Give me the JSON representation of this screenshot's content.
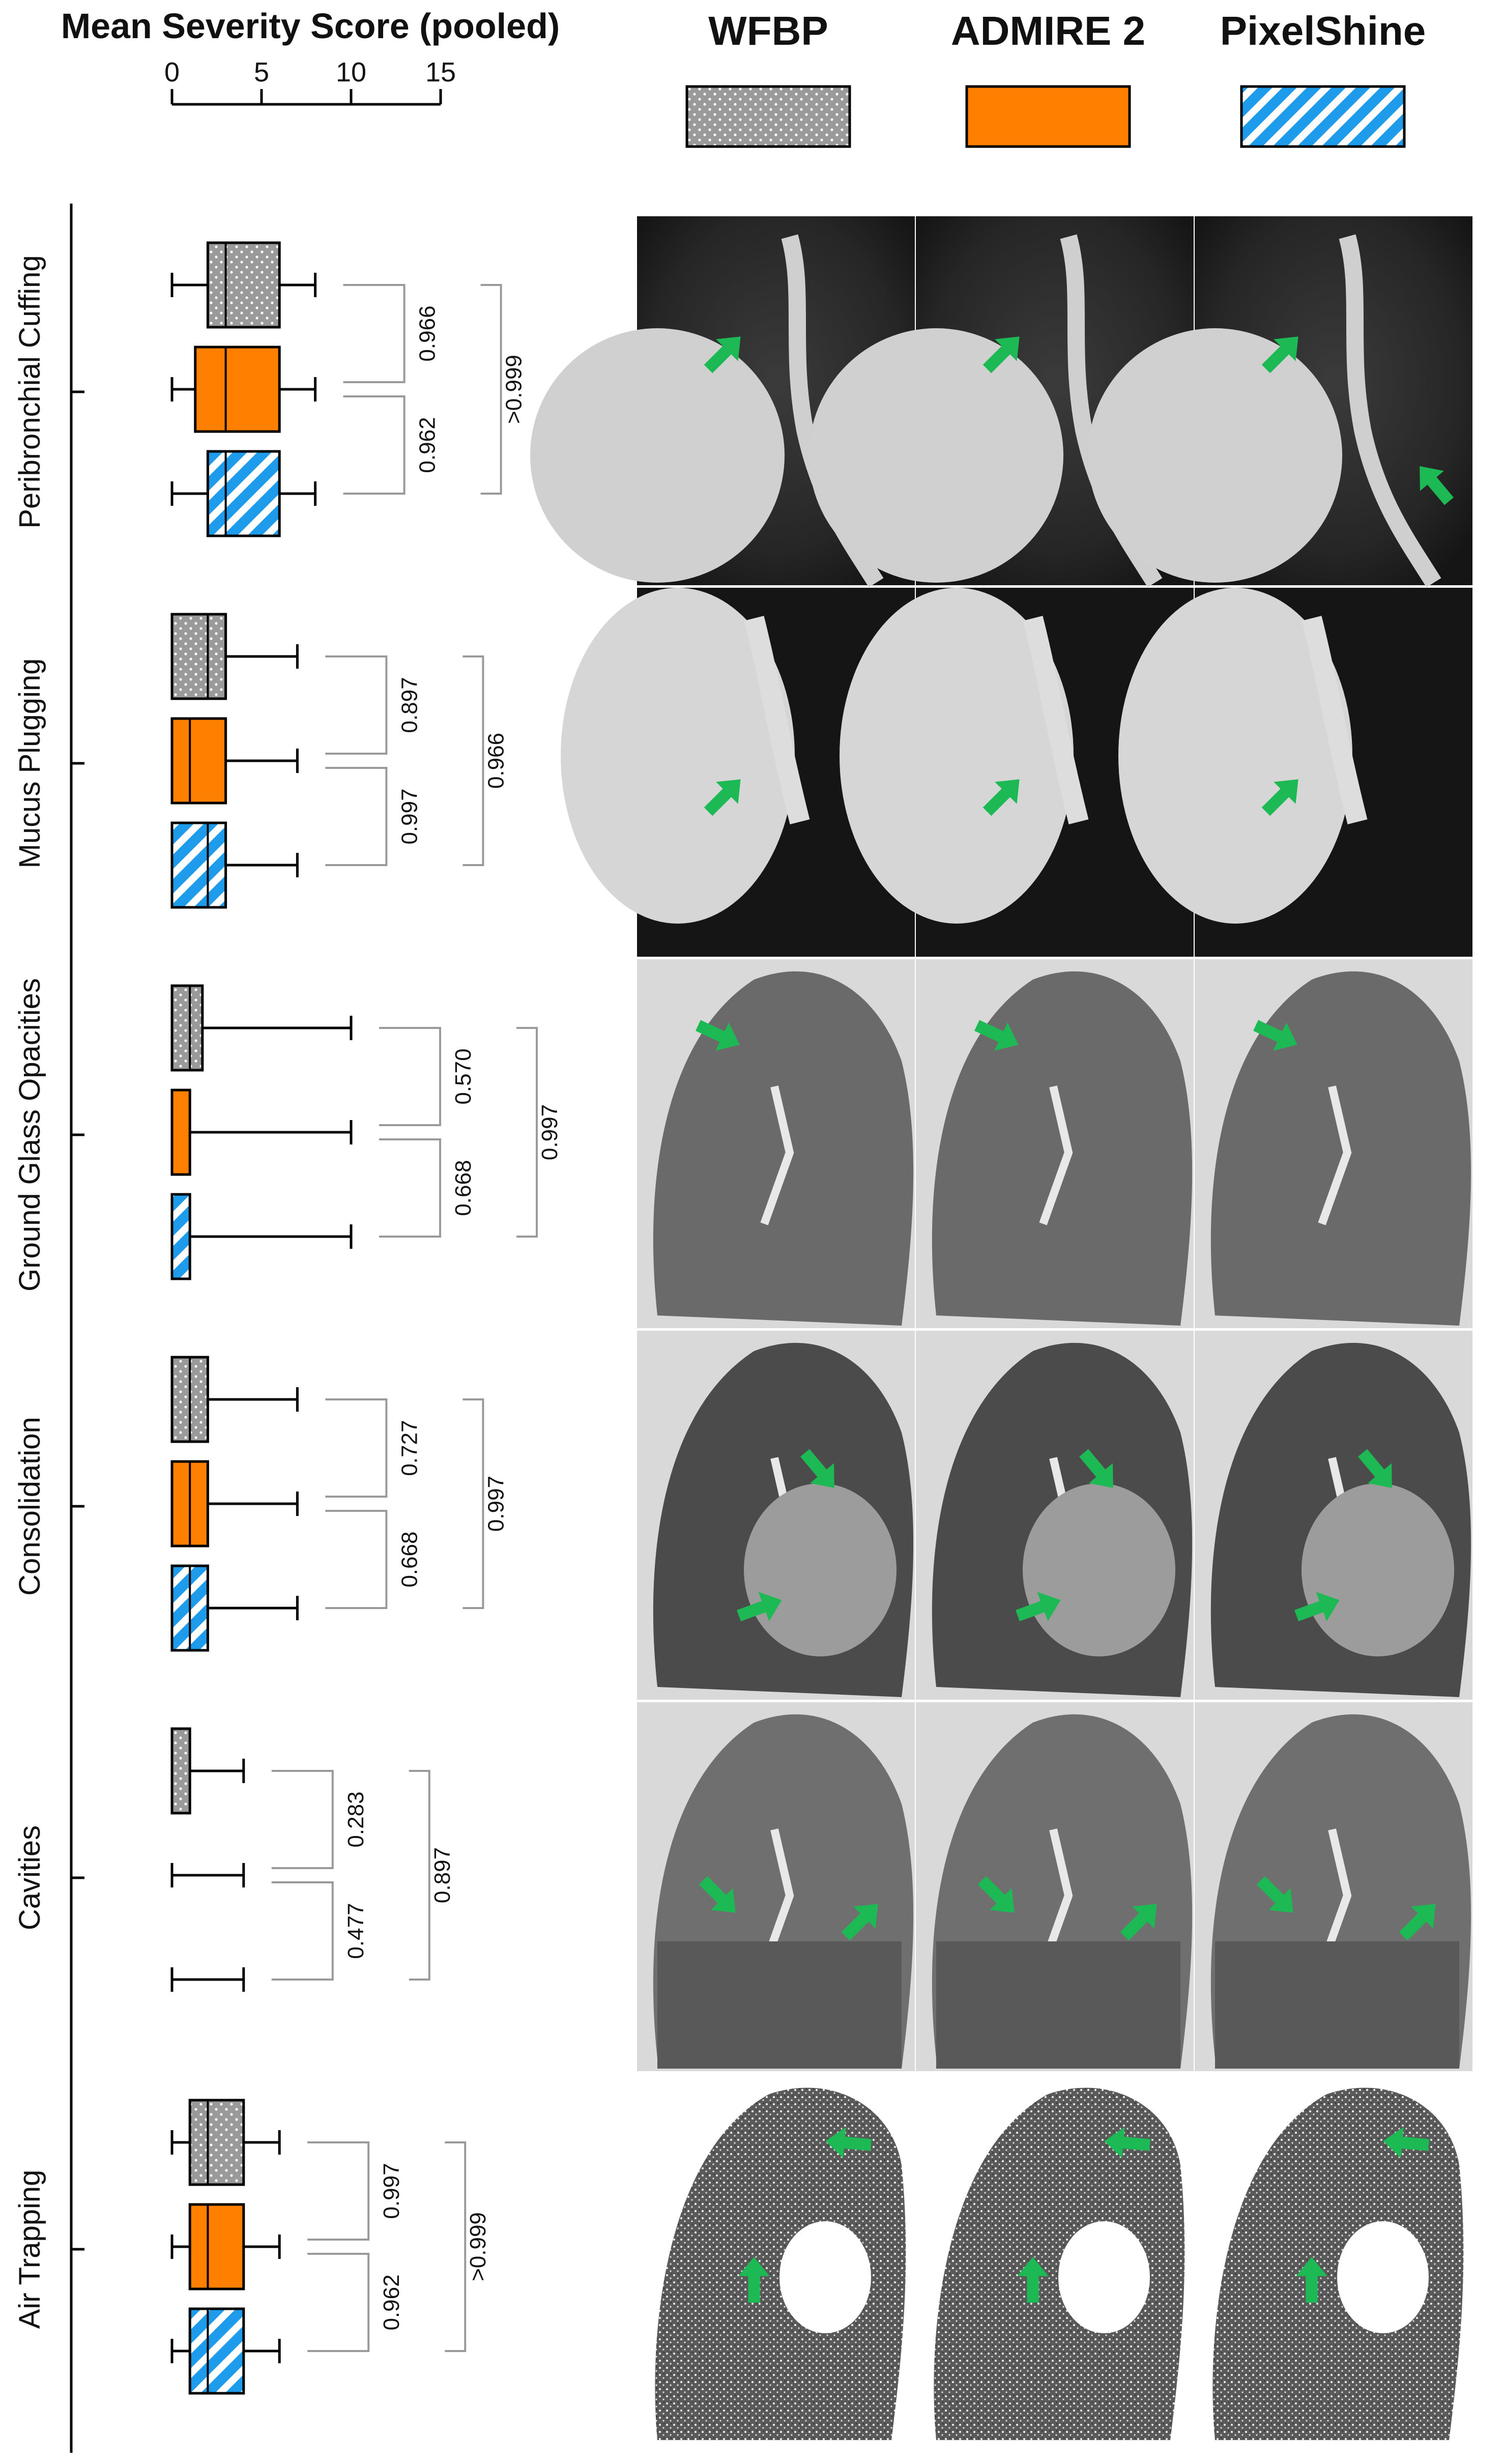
{
  "chart_data": {
    "type": "boxplot",
    "orientation": "horizontal",
    "title": "Mean Severity Score (pooled)",
    "xlim": [
      0,
      15
    ],
    "xticks": [
      "0",
      "5",
      "10",
      "15"
    ],
    "legend": [
      {
        "name": "WFBP",
        "pattern": "dots",
        "color": "#9a9a9a"
      },
      {
        "name": "ADMIRE 2",
        "pattern": "solid",
        "color": "#ff7f00"
      },
      {
        "name": "PixelShine",
        "pattern": "stripes",
        "color": "#1e9bea"
      }
    ],
    "categories": [
      {
        "label": "Peribronchial Cuffing",
        "boxes": [
          {
            "series": "WFBP",
            "min": 0,
            "q1": 2,
            "median": 3,
            "q3": 6,
            "max": 8
          },
          {
            "series": "ADMIRE 2",
            "min": 0,
            "q1": 1.3,
            "median": 3,
            "q3": 6,
            "max": 8
          },
          {
            "series": "PixelShine",
            "min": 0,
            "q1": 2,
            "median": 3,
            "q3": 6,
            "max": 8
          }
        ],
        "p_values": {
          "wfbp_vs_admire": "0.966",
          "admire_vs_pixelshine": "0.962",
          "wfbp_vs_pixelshine": ">0.999"
        }
      },
      {
        "label": "Mucus Plugging",
        "boxes": [
          {
            "series": "WFBP",
            "min": 0,
            "q1": 0,
            "median": 2,
            "q3": 3,
            "max": 7
          },
          {
            "series": "ADMIRE 2",
            "min": 0,
            "q1": 0,
            "median": 1,
            "q3": 3,
            "max": 7
          },
          {
            "series": "PixelShine",
            "min": 0,
            "q1": 0,
            "median": 2,
            "q3": 3,
            "max": 7
          }
        ],
        "p_values": {
          "wfbp_vs_admire": "0.897",
          "admire_vs_pixelshine": "0.997",
          "wfbp_vs_pixelshine": "0.966"
        }
      },
      {
        "label": "Ground Glass Opacities",
        "boxes": [
          {
            "series": "WFBP",
            "min": 0,
            "q1": 0,
            "median": 1,
            "q3": 1.7,
            "max": 10
          },
          {
            "series": "ADMIRE 2",
            "min": 0,
            "q1": 0,
            "median": 0,
            "q3": 1,
            "max": 10
          },
          {
            "series": "PixelShine",
            "min": 0,
            "q1": 0,
            "median": 0,
            "q3": 1,
            "max": 10
          }
        ],
        "p_values": {
          "wfbp_vs_admire": "0.570",
          "admire_vs_pixelshine": "0.668",
          "wfbp_vs_pixelshine": "0.997"
        }
      },
      {
        "label": "Consolidation",
        "boxes": [
          {
            "series": "WFBP",
            "min": 0,
            "q1": 0,
            "median": 1,
            "q3": 2,
            "max": 7
          },
          {
            "series": "ADMIRE 2",
            "min": 0,
            "q1": 0,
            "median": 1,
            "q3": 2,
            "max": 7
          },
          {
            "series": "PixelShine",
            "min": 0,
            "q1": 0,
            "median": 1,
            "q3": 2,
            "max": 7
          }
        ],
        "p_values": {
          "wfbp_vs_admire": "0.727",
          "admire_vs_pixelshine": "0.668",
          "wfbp_vs_pixelshine": "0.997"
        }
      },
      {
        "label": "Cavities",
        "boxes": [
          {
            "series": "WFBP",
            "min": 0,
            "q1": 0,
            "median": 0,
            "q3": 1,
            "max": 4
          },
          {
            "series": "ADMIRE 2",
            "min": 0,
            "q1": 0,
            "median": 0,
            "q3": 0,
            "max": 4
          },
          {
            "series": "PixelShine",
            "min": 0,
            "q1": 0,
            "median": 0,
            "q3": 0,
            "max": 4
          }
        ],
        "p_values": {
          "wfbp_vs_admire": "0.283",
          "admire_vs_pixelshine": "0.477",
          "wfbp_vs_pixelshine": "0.897"
        }
      },
      {
        "label": "Air Trapping",
        "boxes": [
          {
            "series": "WFBP",
            "min": 0,
            "q1": 1,
            "median": 2,
            "q3": 4,
            "max": 6
          },
          {
            "series": "ADMIRE 2",
            "min": 0,
            "q1": 1,
            "median": 2,
            "q3": 4,
            "max": 6
          },
          {
            "series": "PixelShine",
            "min": 0,
            "q1": 1,
            "median": 2,
            "q3": 4,
            "max": 6
          }
        ],
        "p_values": {
          "wfbp_vs_admire": "0.997",
          "admire_vs_pixelshine": "0.962",
          "wfbp_vs_pixelshine": ">0.999"
        }
      }
    ],
    "image_panel_columns": [
      "WFBP",
      "ADMIRE 2",
      "PixelShine"
    ],
    "image_panel_description": "CT lung images per finding and reconstruction, green arrows mark findings"
  }
}
